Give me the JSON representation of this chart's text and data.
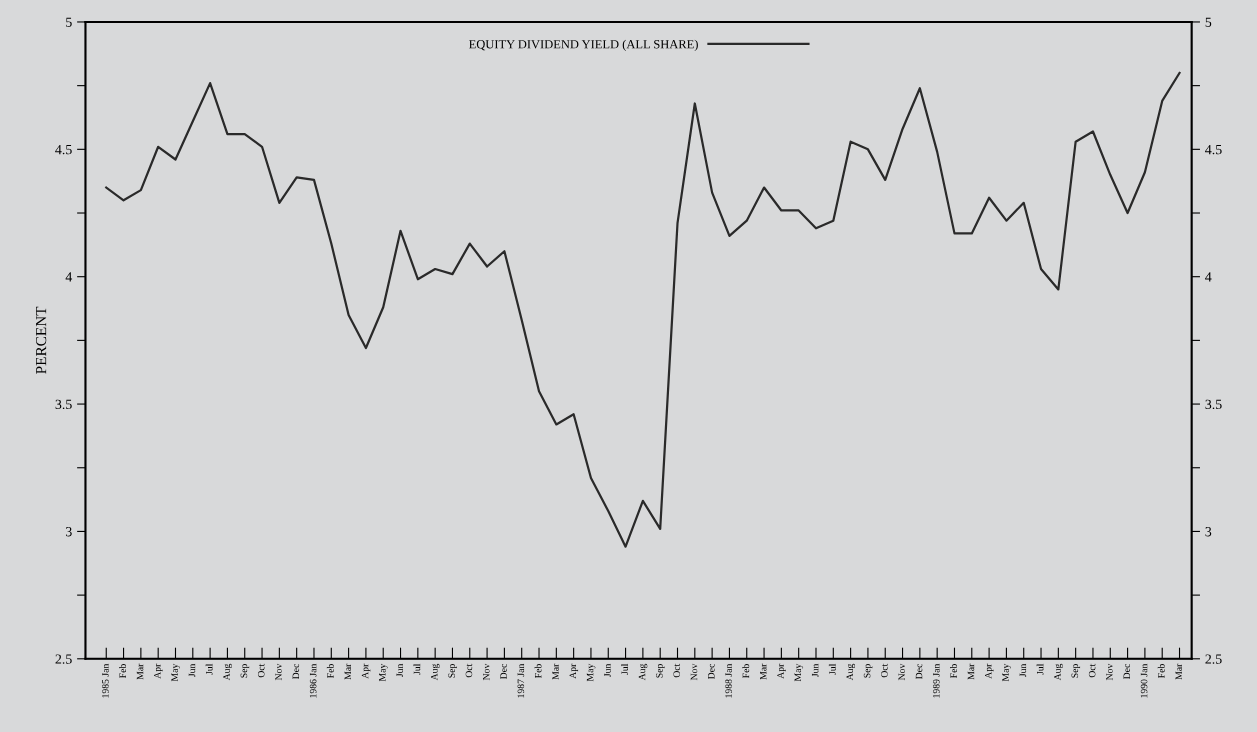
{
  "chart_data": {
    "type": "line",
    "ylabel": "PERCENT",
    "categories": [
      "1985 Jan",
      "Feb",
      "Mar",
      "Apr",
      "May",
      "Jun",
      "Jul",
      "Aug",
      "Sep",
      "Oct",
      "Nov",
      "Dec",
      "1986 Jan",
      "Feb",
      "Mar",
      "Apr",
      "May",
      "Jun",
      "Jul",
      "Aug",
      "Sep",
      "Oct",
      "Nov",
      "Dec",
      "1987 Jan",
      "Feb",
      "Mar",
      "Apr",
      "May",
      "Jun",
      "Jul",
      "Aug",
      "Sep",
      "Oct",
      "Nov",
      "Dec",
      "1988 Jan",
      "Feb",
      "Mar",
      "Apr",
      "May",
      "Jun",
      "Jul",
      "Aug",
      "Sep",
      "Oct",
      "Nov",
      "Dec",
      "1989 Jan",
      "Feb",
      "Mar",
      "Apr",
      "May",
      "Jun",
      "Jul",
      "Aug",
      "Sep",
      "Oct",
      "Nov",
      "Dec",
      "1990 Jan",
      "Feb",
      "Mar"
    ],
    "series": [
      {
        "name": "EQUITY DIVIDEND YIELD (ALL SHARE)",
        "color": "#2a2a2a",
        "values": [
          4.35,
          4.3,
          4.34,
          4.51,
          4.46,
          4.61,
          4.76,
          4.56,
          4.56,
          4.51,
          4.29,
          4.39,
          4.38,
          4.13,
          3.85,
          3.72,
          3.88,
          4.18,
          3.99,
          4.03,
          4.01,
          4.13,
          4.04,
          4.1,
          3.83,
          3.55,
          3.42,
          3.46,
          3.21,
          3.08,
          2.94,
          3.12,
          3.01,
          4.21,
          4.68,
          4.33,
          4.16,
          4.22,
          4.35,
          4.26,
          4.26,
          4.19,
          4.22,
          4.53,
          4.5,
          4.38,
          4.58,
          4.74,
          4.49,
          4.17,
          4.17,
          4.31,
          4.22,
          4.29,
          4.03,
          3.95,
          4.53,
          4.57,
          4.4,
          4.25,
          4.41,
          4.69,
          4.8
        ]
      }
    ],
    "ylim": [
      2.5,
      5
    ],
    "yticks": [
      2.5,
      {
        "value": 2.75,
        "label": null
      },
      3,
      {
        "value": 3.25,
        "label": null
      },
      3.5,
      {
        "value": 3.75,
        "label": null
      },
      4,
      {
        "value": 4.25,
        "label": null
      },
      4.5,
      {
        "value": 4.75,
        "label": null
      },
      5
    ],
    "y2lim": [
      2.5,
      5
    ],
    "y2ticks": [
      2.5,
      {
        "value": 2.75,
        "label": null
      },
      3,
      {
        "value": 3.25,
        "label": null
      },
      3.5,
      {
        "value": 3.75,
        "label": null
      },
      4,
      {
        "value": 4.25,
        "label": null
      },
      4.5,
      {
        "value": 4.75,
        "label": null
      },
      5
    ],
    "legend": "top",
    "grid": false,
    "marker": "none",
    "line_style": "solid"
  }
}
